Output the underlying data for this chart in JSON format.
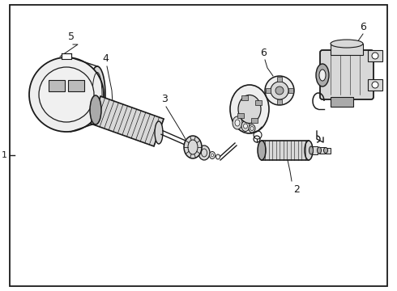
{
  "background_color": "#ffffff",
  "border_color": "#000000",
  "line_color": "#1a1a1a",
  "text_color": "#000000",
  "label_1": "1",
  "label_2": "2",
  "label_3": "3",
  "label_4": "4",
  "label_5": "5",
  "label_6a": "6",
  "label_6b": "6",
  "fig_width": 4.9,
  "fig_height": 3.6,
  "dpi": 100,
  "gray_fill": "#d8d8d8",
  "dark_gray": "#aaaaaa",
  "light_gray": "#eeeeee"
}
